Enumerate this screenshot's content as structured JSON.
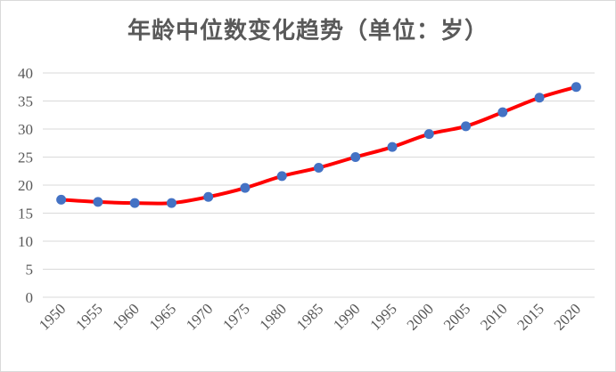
{
  "chart_data": {
    "type": "line",
    "title": "年龄中位数变化趋势（单位：岁）",
    "xlabel": "",
    "ylabel": "",
    "x": [
      1950,
      1955,
      1960,
      1965,
      1970,
      1975,
      1980,
      1985,
      1990,
      1995,
      2000,
      2005,
      2010,
      2015,
      2020
    ],
    "x_tick_labels": [
      "1950",
      "1955",
      "1960",
      "1965",
      "1970",
      "1975",
      "1980",
      "1985",
      "1990",
      "1995",
      "2000",
      "2005",
      "2010",
      "2015",
      "2020"
    ],
    "series": [
      {
        "values": [
          17.4,
          17.0,
          16.8,
          16.8,
          17.9,
          19.5,
          21.6,
          23.1,
          25.0,
          26.8,
          29.1,
          30.5,
          33.0,
          35.6,
          37.5
        ]
      }
    ],
    "ylim": [
      0,
      40
    ],
    "y_ticks": [
      0,
      5,
      10,
      15,
      20,
      25,
      30,
      35,
      40
    ],
    "y_tick_labels": [
      "0",
      "5",
      "10",
      "15",
      "20",
      "25",
      "30",
      "35",
      "40"
    ],
    "grid": true,
    "legend": "none",
    "smooth": true,
    "line_color": "#ff0000",
    "marker_color": "#4472c4",
    "grid_color": "#d9d9d9",
    "title_color": "#595959",
    "tick_label_color": "#595959"
  }
}
